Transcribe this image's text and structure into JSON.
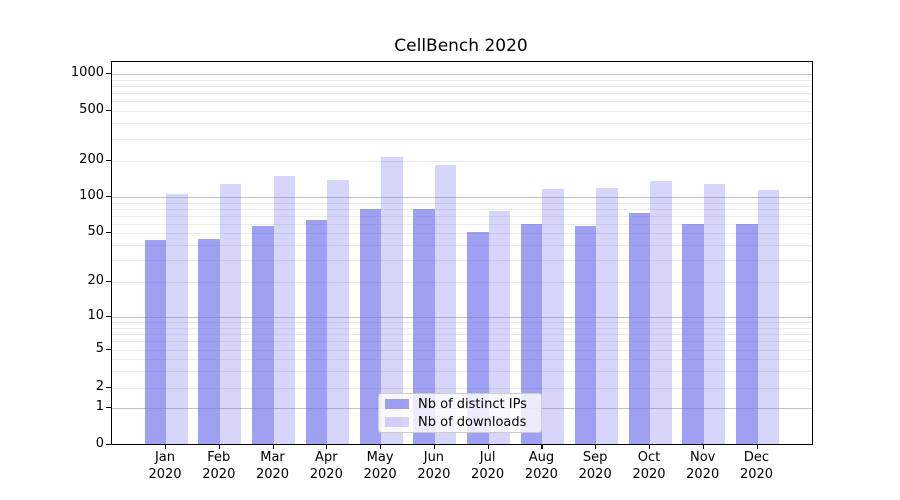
{
  "figure": {
    "background": "#ffffff"
  },
  "chart_data": {
    "type": "bar",
    "title": "CellBench 2020",
    "categories": [
      "Jan",
      "Feb",
      "Mar",
      "Apr",
      "May",
      "Jun",
      "Jul",
      "Aug",
      "Sep",
      "Oct",
      "Nov",
      "Dec"
    ],
    "x_year_label": "2020",
    "series": [
      {
        "name": "Nb of distinct IPs",
        "color": "rgba(104,104,235,0.63)",
        "values": [
          44,
          45,
          57,
          64,
          79,
          80,
          51,
          59,
          57,
          74,
          59,
          59
        ]
      },
      {
        "name": "Nb of downloads",
        "color": "rgba(104,104,235,0.27)",
        "values": [
          107,
          128,
          150,
          139,
          215,
          187,
          76,
          116,
          119,
          136,
          128,
          114
        ]
      }
    ],
    "y_ticks": [
      0,
      1,
      2,
      5,
      10,
      20,
      50,
      100,
      200,
      500,
      1000
    ],
    "y_scale": "symlog",
    "ylim": [
      0,
      1275
    ],
    "grid": true,
    "legend_position": "lower center",
    "colors": {
      "spine": "#000000",
      "grid_major": "#c3c3c3",
      "grid_minor": "#eaeaea"
    }
  }
}
